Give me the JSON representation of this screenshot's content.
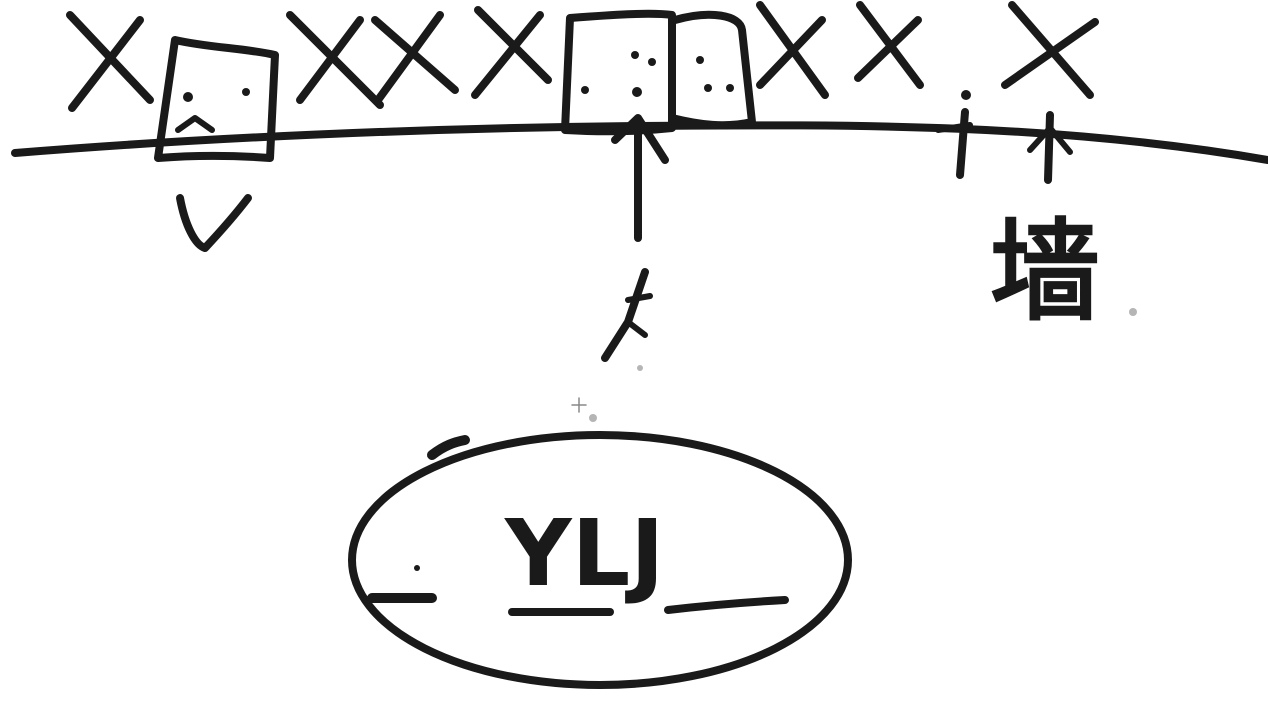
{
  "canvas": {
    "background": "#ffffff",
    "ink_color": "#1a1a1a"
  },
  "sketch": {
    "wall_label": "墙",
    "center_label": "YLJ",
    "check_mark_icon": "check-icon",
    "cross_mark_icon": "cross-icon"
  }
}
